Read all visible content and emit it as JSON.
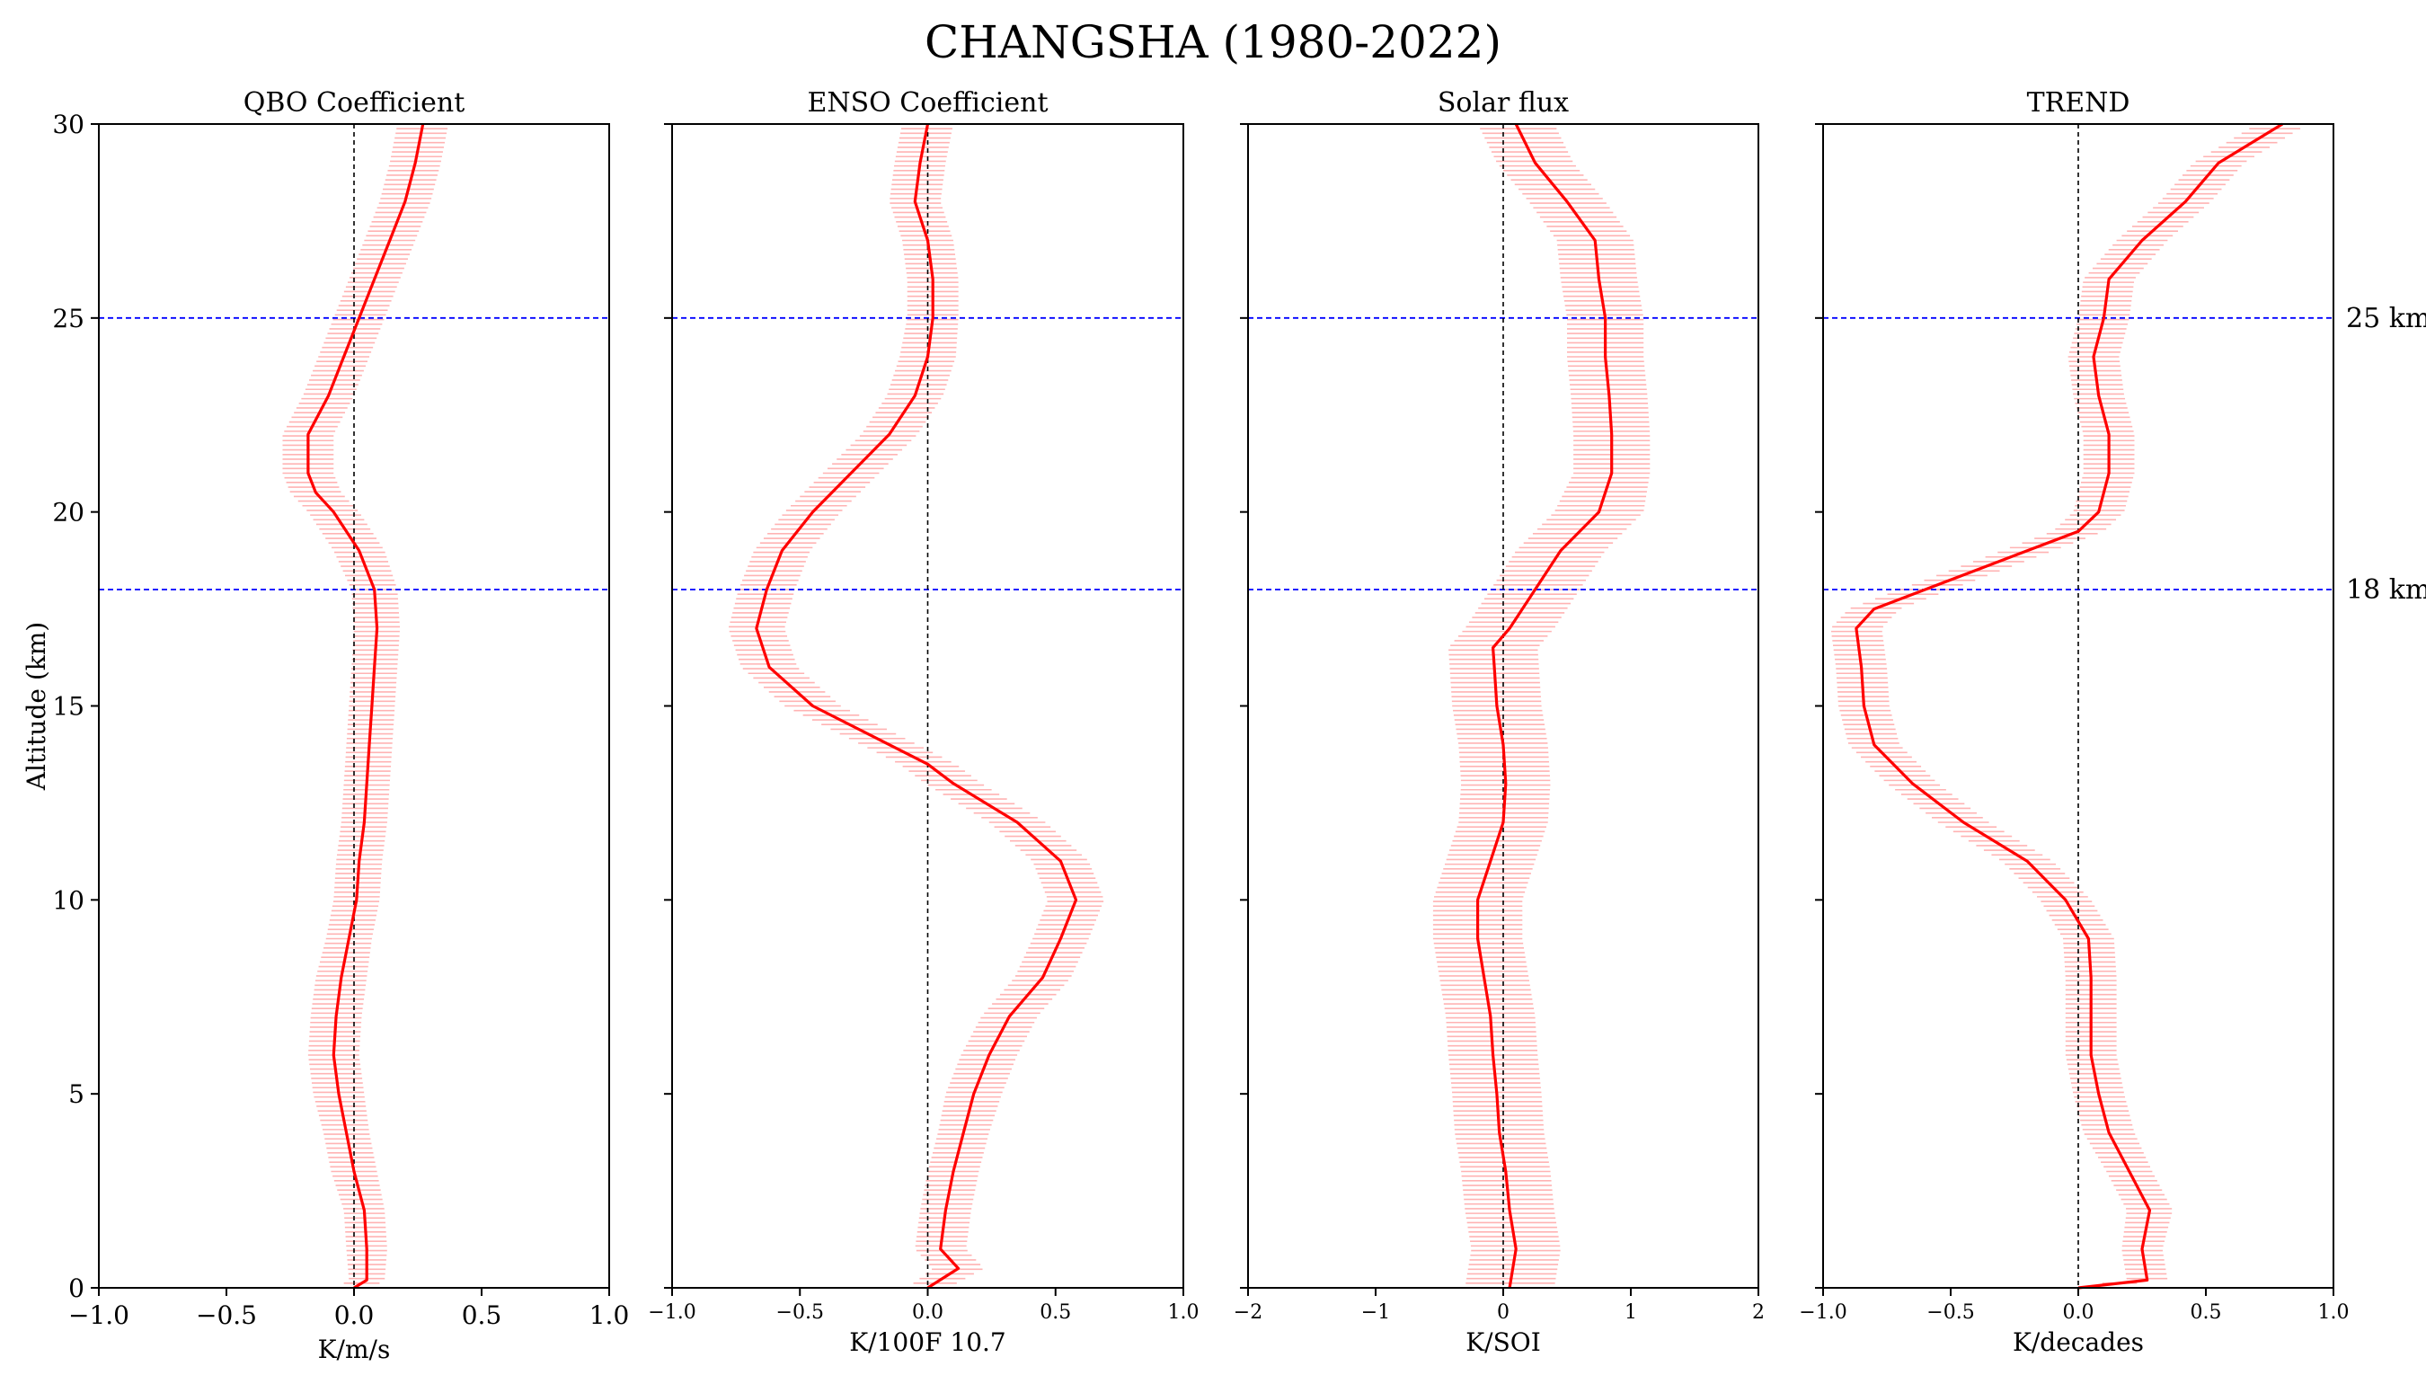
{
  "figure": {
    "title": "CHANGSHA (1980-2022)",
    "ylabel": "Altitude (km)",
    "ylim": [
      0,
      30
    ],
    "yticks": [
      0,
      5,
      10,
      15,
      20,
      25,
      30
    ],
    "reference_lines": [
      {
        "altitude": 25,
        "label": "25 km",
        "color": "#0000ff"
      },
      {
        "altitude": 18,
        "label": "18 km",
        "color": "#0000ff"
      }
    ],
    "line_color": "#ff0000",
    "errorbar_color": "#ffb3b3",
    "zero_line_color": "#000000"
  },
  "chart_data": [
    {
      "type": "line",
      "title": "QBO Coefficient",
      "xlabel": "K/m/s",
      "xlim": [
        -1.0,
        1.0
      ],
      "xticks": [
        -1.0,
        -0.5,
        0.0,
        0.5,
        1.0
      ],
      "xtick_labels": [
        "−1.0",
        "−0.5",
        "0.0",
        "0.5",
        "1.0"
      ],
      "tick_style": "large",
      "series": {
        "altitude": [
          0,
          0.2,
          1,
          2,
          3,
          4,
          5,
          6,
          7,
          8,
          9,
          10,
          11,
          12,
          13,
          14,
          15,
          16,
          17,
          18,
          19,
          20,
          20.5,
          21,
          22,
          23,
          24,
          25,
          26,
          27,
          28,
          29,
          30
        ],
        "value": [
          0.0,
          0.05,
          0.05,
          0.04,
          0.0,
          -0.03,
          -0.06,
          -0.08,
          -0.07,
          -0.05,
          -0.02,
          0.01,
          0.02,
          0.04,
          0.05,
          0.06,
          0.07,
          0.08,
          0.09,
          0.08,
          0.02,
          -0.08,
          -0.15,
          -0.18,
          -0.18,
          -0.1,
          -0.04,
          0.02,
          0.08,
          0.14,
          0.2,
          0.24,
          0.27
        ],
        "error": [
          0.07,
          0.07,
          0.08,
          0.08,
          0.09,
          0.09,
          0.1,
          0.1,
          0.1,
          0.1,
          0.09,
          0.09,
          0.09,
          0.09,
          0.09,
          0.09,
          0.09,
          0.09,
          0.09,
          0.09,
          0.1,
          0.1,
          0.1,
          0.1,
          0.1,
          0.1,
          0.1,
          0.1,
          0.1,
          0.1,
          0.1,
          0.1,
          0.1
        ]
      }
    },
    {
      "type": "line",
      "title": "ENSO Coefficient",
      "xlabel": "K/100F 10.7",
      "xlim": [
        -1.0,
        1.0
      ],
      "xticks": [
        -1.0,
        -0.5,
        0.0,
        0.5,
        1.0
      ],
      "xtick_labels": [
        "−1.0",
        "−0.5",
        "0.0",
        "0.5",
        "1.0"
      ],
      "tick_style": "small",
      "series": {
        "altitude": [
          0,
          0.5,
          1,
          2,
          3,
          4,
          5,
          6,
          7,
          8,
          9,
          10,
          11,
          12,
          13,
          13.5,
          14,
          15,
          16,
          17,
          18,
          19,
          20,
          21,
          22,
          23,
          24,
          25,
          26,
          27,
          28,
          29,
          30
        ],
        "value": [
          0.0,
          0.12,
          0.05,
          0.07,
          0.1,
          0.14,
          0.18,
          0.24,
          0.32,
          0.45,
          0.52,
          0.58,
          0.52,
          0.35,
          0.1,
          0.0,
          -0.15,
          -0.45,
          -0.62,
          -0.67,
          -0.63,
          -0.57,
          -0.45,
          -0.3,
          -0.15,
          -0.05,
          0.0,
          0.02,
          0.02,
          0.0,
          -0.05,
          -0.03,
          0.0
        ],
        "error": [
          0.08,
          0.1,
          0.1,
          0.1,
          0.1,
          0.1,
          0.11,
          0.11,
          0.11,
          0.11,
          0.11,
          0.11,
          0.11,
          0.11,
          0.11,
          0.11,
          0.11,
          0.11,
          0.11,
          0.11,
          0.11,
          0.11,
          0.11,
          0.11,
          0.11,
          0.11,
          0.11,
          0.1,
          0.1,
          0.1,
          0.1,
          0.1,
          0.1
        ]
      }
    },
    {
      "type": "line",
      "title": "Solar flux",
      "xlabel": "K/SOI",
      "xlim": [
        -2,
        2
      ],
      "xticks": [
        -2,
        -1,
        0,
        1,
        2
      ],
      "xtick_labels": [
        "−2",
        "−1",
        "0",
        "1",
        "2"
      ],
      "tick_style": "small",
      "series": {
        "altitude": [
          0,
          1,
          2,
          3,
          4,
          5,
          6,
          7,
          8,
          9,
          10,
          11,
          12,
          13,
          14,
          15,
          16,
          16.5,
          17,
          18,
          19,
          20,
          21,
          22,
          23,
          24,
          25,
          26,
          27,
          28,
          29,
          30
        ],
        "value": [
          0.05,
          0.1,
          0.05,
          0.02,
          -0.03,
          -0.05,
          -0.08,
          -0.1,
          -0.15,
          -0.2,
          -0.2,
          -0.1,
          0.0,
          0.02,
          0.0,
          -0.05,
          -0.07,
          -0.08,
          0.05,
          0.25,
          0.45,
          0.75,
          0.85,
          0.85,
          0.83,
          0.8,
          0.8,
          0.75,
          0.72,
          0.5,
          0.25,
          0.1
        ],
        "error": [
          0.35,
          0.35,
          0.35,
          0.35,
          0.35,
          0.35,
          0.35,
          0.35,
          0.35,
          0.35,
          0.35,
          0.35,
          0.35,
          0.35,
          0.35,
          0.35,
          0.35,
          0.35,
          0.35,
          0.35,
          0.35,
          0.35,
          0.3,
          0.3,
          0.3,
          0.3,
          0.3,
          0.3,
          0.3,
          0.3,
          0.3,
          0.3
        ]
      }
    },
    {
      "type": "line",
      "title": "TREND",
      "xlabel": "K/decades",
      "xlim": [
        -1.0,
        1.0
      ],
      "xticks": [
        -1.0,
        -0.5,
        0.0,
        0.5,
        1.0
      ],
      "xtick_labels": [
        "−1.0",
        "−0.5",
        "0.0",
        "0.5",
        "1.0"
      ],
      "tick_style": "small",
      "series": {
        "altitude": [
          0,
          0.2,
          1,
          2,
          3,
          4,
          5,
          6,
          7,
          8,
          9,
          10,
          11,
          12,
          13,
          14,
          15,
          16,
          17,
          17.5,
          18,
          19,
          19.5,
          20,
          21,
          22,
          23,
          24,
          25,
          26,
          27,
          28,
          29,
          30
        ],
        "value": [
          0.0,
          0.27,
          0.25,
          0.28,
          0.2,
          0.12,
          0.08,
          0.05,
          0.05,
          0.05,
          0.04,
          -0.05,
          -0.2,
          -0.45,
          -0.65,
          -0.8,
          -0.84,
          -0.85,
          -0.87,
          -0.8,
          -0.6,
          -0.2,
          0.0,
          0.08,
          0.12,
          0.12,
          0.08,
          0.06,
          0.1,
          0.12,
          0.25,
          0.42,
          0.55,
          0.8
        ],
        "error": [
          0.05,
          0.08,
          0.08,
          0.09,
          0.09,
          0.1,
          0.1,
          0.1,
          0.1,
          0.1,
          0.1,
          0.1,
          0.1,
          0.1,
          0.1,
          0.1,
          0.1,
          0.1,
          0.1,
          0.1,
          0.1,
          0.1,
          0.1,
          0.1,
          0.1,
          0.1,
          0.1,
          0.1,
          0.1,
          0.1,
          0.1,
          0.1,
          0.1,
          0.1
        ]
      }
    }
  ]
}
